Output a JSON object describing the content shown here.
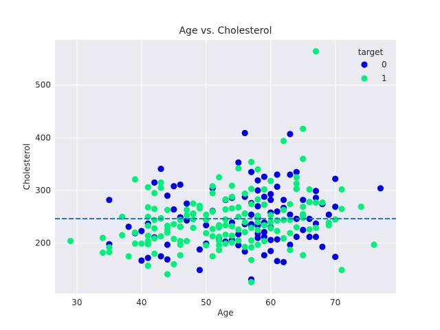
{
  "chart_data": {
    "type": "scatter",
    "title": "Age vs. Cholesterol",
    "xlabel": "Age",
    "ylabel": "Cholesterol",
    "xlim": [
      26.6,
      79.4
    ],
    "ylim": [
      104.3,
      585.7
    ],
    "xticks": [
      30,
      40,
      50,
      60,
      70
    ],
    "yticks": [
      200,
      300,
      400,
      500
    ],
    "grid": true,
    "legend": {
      "title": "target",
      "placement": "top-right"
    },
    "reference_line": {
      "y": 246.3,
      "style": "dashed",
      "color": "#1f77b4"
    },
    "colors": {
      "target_0": "#0000e0",
      "target_1": "#00f07a",
      "background": "#eaeaf2",
      "grid": "#ffffff"
    },
    "series": [
      {
        "name": "0",
        "points": [
          [
            35,
            282
          ],
          [
            35,
            198
          ],
          [
            38,
            231
          ],
          [
            39,
            219
          ],
          [
            40,
            223
          ],
          [
            40,
            167
          ],
          [
            41,
            172
          ],
          [
            41,
            237
          ],
          [
            42,
            315
          ],
          [
            42,
            211
          ],
          [
            43,
            341
          ],
          [
            43,
            247
          ],
          [
            43,
            175
          ],
          [
            44,
            290
          ],
          [
            44,
            197
          ],
          [
            44,
            169
          ],
          [
            45,
            264
          ],
          [
            45,
            308
          ],
          [
            46,
            311
          ],
          [
            46,
            249
          ],
          [
            46,
            231
          ],
          [
            47,
            275
          ],
          [
            47,
            243
          ],
          [
            48,
            256
          ],
          [
            49,
            149
          ],
          [
            49,
            188
          ],
          [
            50,
            234
          ],
          [
            50,
            199
          ],
          [
            51,
            304
          ],
          [
            51,
            261
          ],
          [
            52,
            233
          ],
          [
            52,
            209
          ],
          [
            53,
            282
          ],
          [
            53,
            203
          ],
          [
            54,
            286
          ],
          [
            54,
            239
          ],
          [
            54,
            206
          ],
          [
            55,
            353
          ],
          [
            55,
            217
          ],
          [
            55,
            196
          ],
          [
            56,
            409
          ],
          [
            56,
            288
          ],
          [
            56,
            256
          ],
          [
            56,
            236
          ],
          [
            56,
            184
          ],
          [
            57,
            335
          ],
          [
            57,
            276
          ],
          [
            57,
            254
          ],
          [
            57,
            236
          ],
          [
            57,
            232
          ],
          [
            57,
            131
          ],
          [
            58,
            319
          ],
          [
            58,
            300
          ],
          [
            58,
            270
          ],
          [
            58,
            248
          ],
          [
            58,
            234
          ],
          [
            58,
            218
          ],
          [
            58,
            210
          ],
          [
            59,
            326
          ],
          [
            59,
            288
          ],
          [
            59,
            273
          ],
          [
            59,
            239
          ],
          [
            59,
            221
          ],
          [
            59,
            212
          ],
          [
            59,
            177
          ],
          [
            60,
            293
          ],
          [
            60,
            282
          ],
          [
            60,
            258
          ],
          [
            60,
            230
          ],
          [
            60,
            206
          ],
          [
            60,
            185
          ],
          [
            61,
            330
          ],
          [
            61,
            307
          ],
          [
            61,
            260
          ],
          [
            61,
            243
          ],
          [
            61,
            207
          ],
          [
            61,
            166
          ],
          [
            62,
            282
          ],
          [
            62,
            267
          ],
          [
            62,
            244
          ],
          [
            62,
            209
          ],
          [
            62,
            164
          ],
          [
            63,
            407
          ],
          [
            63,
            330
          ],
          [
            63,
            254
          ],
          [
            63,
            197
          ],
          [
            64,
            335
          ],
          [
            64,
            303
          ],
          [
            64,
            246
          ],
          [
            64,
            212
          ],
          [
            65,
            282
          ],
          [
            65,
            254
          ],
          [
            65,
            225
          ],
          [
            66,
            278
          ],
          [
            66,
            246
          ],
          [
            66,
            212
          ],
          [
            67,
            299
          ],
          [
            67,
            286
          ],
          [
            67,
            237
          ],
          [
            67,
            212
          ],
          [
            68,
            274
          ],
          [
            68,
            193
          ],
          [
            69,
            254
          ],
          [
            70,
            322
          ],
          [
            70,
            269
          ],
          [
            70,
            174
          ],
          [
            77,
            304
          ]
        ]
      },
      {
        "name": "1",
        "points": [
          [
            29,
            204
          ],
          [
            34,
            210
          ],
          [
            34,
            182
          ],
          [
            35,
            183
          ],
          [
            35,
            192
          ],
          [
            37,
            215
          ],
          [
            37,
            250
          ],
          [
            38,
            175
          ],
          [
            39,
            321
          ],
          [
            39,
            220
          ],
          [
            39,
            199
          ],
          [
            40,
            199
          ],
          [
            41,
            306
          ],
          [
            41,
            268
          ],
          [
            41,
            250
          ],
          [
            41,
            233
          ],
          [
            41,
            214
          ],
          [
            41,
            204
          ],
          [
            41,
            198
          ],
          [
            41,
            157
          ],
          [
            42,
            295
          ],
          [
            42,
            265
          ],
          [
            42,
            244
          ],
          [
            42,
            228
          ],
          [
            42,
            209
          ],
          [
            42,
            180
          ],
          [
            43,
            315
          ],
          [
            43,
            305
          ],
          [
            43,
            247
          ],
          [
            43,
            213
          ],
          [
            44,
            263
          ],
          [
            44,
            233
          ],
          [
            44,
            226
          ],
          [
            44,
            220
          ],
          [
            44,
            141
          ],
          [
            45,
            236
          ],
          [
            45,
            208
          ],
          [
            45,
            160
          ],
          [
            46,
            244
          ],
          [
            46,
            231
          ],
          [
            46,
            204
          ],
          [
            46,
            197
          ],
          [
            46,
            177
          ],
          [
            47,
            263
          ],
          [
            47,
            253
          ],
          [
            47,
            204
          ],
          [
            48,
            275
          ],
          [
            48,
            256
          ],
          [
            48,
            245
          ],
          [
            48,
            229
          ],
          [
            49,
            271
          ],
          [
            49,
            266
          ],
          [
            50,
            254
          ],
          [
            50,
            244
          ],
          [
            50,
            219
          ],
          [
            50,
            196
          ],
          [
            51,
            308
          ],
          [
            51,
            295
          ],
          [
            51,
            260
          ],
          [
            51,
            227
          ],
          [
            51,
            213
          ],
          [
            51,
            175
          ],
          [
            52,
            325
          ],
          [
            52,
            234
          ],
          [
            52,
            230
          ],
          [
            52,
            212
          ],
          [
            52,
            204
          ],
          [
            52,
            196
          ],
          [
            52,
            187
          ],
          [
            53,
            283
          ],
          [
            53,
            264
          ],
          [
            53,
            245
          ],
          [
            53,
            234
          ],
          [
            53,
            216
          ],
          [
            53,
            199
          ],
          [
            54,
            309
          ],
          [
            54,
            288
          ],
          [
            54,
            266
          ],
          [
            54,
            232
          ],
          [
            54,
            214
          ],
          [
            54,
            201
          ],
          [
            55,
            342
          ],
          [
            55,
            268
          ],
          [
            55,
            250
          ],
          [
            55,
            226
          ],
          [
            55,
            205
          ],
          [
            56,
            294
          ],
          [
            56,
            256
          ],
          [
            56,
            240
          ],
          [
            56,
            221
          ],
          [
            56,
            193
          ],
          [
            57,
            354
          ],
          [
            57,
            303
          ],
          [
            57,
            274
          ],
          [
            57,
            229
          ],
          [
            57,
            205
          ],
          [
            57,
            192
          ],
          [
            57,
            168
          ],
          [
            57,
            126
          ],
          [
            58,
            340
          ],
          [
            58,
            283
          ],
          [
            58,
            252
          ],
          [
            58,
            240
          ],
          [
            58,
            225
          ],
          [
            58,
            197
          ],
          [
            59,
            302
          ],
          [
            59,
            273
          ],
          [
            59,
            234
          ],
          [
            59,
            204
          ],
          [
            60,
            318
          ],
          [
            60,
            253
          ],
          [
            60,
            240
          ],
          [
            60,
            228
          ],
          [
            61,
            243
          ],
          [
            61,
            223
          ],
          [
            62,
            394
          ],
          [
            62,
            263
          ],
          [
            62,
            244
          ],
          [
            62,
            209
          ],
          [
            63,
            274
          ],
          [
            63,
            244
          ],
          [
            63,
            219
          ],
          [
            63,
            187
          ],
          [
            64,
            325
          ],
          [
            64,
            313
          ],
          [
            64,
            303
          ],
          [
            64,
            230
          ],
          [
            65,
            417
          ],
          [
            65,
            360
          ],
          [
            65,
            269
          ],
          [
            65,
            255
          ],
          [
            65,
            248
          ],
          [
            65,
            177
          ],
          [
            66,
            302
          ],
          [
            66,
            278
          ],
          [
            66,
            226
          ],
          [
            67,
            564
          ],
          [
            67,
            277
          ],
          [
            67,
            229
          ],
          [
            68,
            277
          ],
          [
            69,
            239
          ],
          [
            69,
            234
          ],
          [
            70,
            245
          ],
          [
            71,
            302
          ],
          [
            71,
            265
          ],
          [
            71,
            149
          ],
          [
            74,
            269
          ],
          [
            76,
            197
          ]
        ]
      }
    ]
  }
}
